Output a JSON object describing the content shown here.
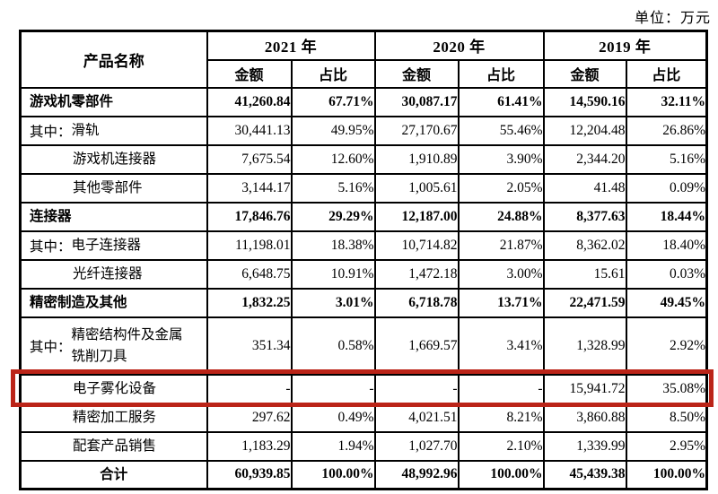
{
  "unit_label": "单位：万元",
  "table": {
    "col_product": "产品名称",
    "year_groups": [
      {
        "year": "2021 年"
      },
      {
        "year": "2020 年"
      },
      {
        "year": "2019 年"
      }
    ],
    "sub_headers": {
      "amount": "金额",
      "ratio": "占比"
    },
    "highlight_color": "#bb2418",
    "rows": [
      {
        "prefix": "",
        "name": "游戏机零部件",
        "style": "section",
        "tall": false,
        "highlight": false,
        "cells": [
          "41,260.84",
          "67.71%",
          "30,087.17",
          "61.41%",
          "14,590.16",
          "32.11%"
        ]
      },
      {
        "prefix": "其中：",
        "name": "滑轨",
        "style": "sub",
        "tall": false,
        "highlight": false,
        "cells": [
          "30,441.13",
          "49.95%",
          "27,170.67",
          "55.46%",
          "12,204.48",
          "26.86%"
        ]
      },
      {
        "prefix": "",
        "name": "游戏机连接器",
        "style": "sub-indent",
        "tall": false,
        "highlight": false,
        "cells": [
          "7,675.54",
          "12.60%",
          "1,910.89",
          "3.90%",
          "2,344.20",
          "5.16%"
        ]
      },
      {
        "prefix": "",
        "name": "其他零部件",
        "style": "sub-indent",
        "tall": false,
        "highlight": false,
        "cells": [
          "3,144.17",
          "5.16%",
          "1,005.61",
          "2.05%",
          "41.48",
          "0.09%"
        ]
      },
      {
        "prefix": "",
        "name": "连接器",
        "style": "section",
        "tall": false,
        "highlight": false,
        "cells": [
          "17,846.76",
          "29.29%",
          "12,187.00",
          "24.88%",
          "8,377.63",
          "18.44%"
        ]
      },
      {
        "prefix": "其中：",
        "name": "电子连接器",
        "style": "sub",
        "tall": false,
        "highlight": false,
        "cells": [
          "11,198.01",
          "18.38%",
          "10,714.82",
          "21.87%",
          "8,362.02",
          "18.40%"
        ]
      },
      {
        "prefix": "",
        "name": "光纤连接器",
        "style": "sub-indent",
        "tall": false,
        "highlight": false,
        "cells": [
          "6,648.75",
          "10.91%",
          "1,472.18",
          "3.00%",
          "15.61",
          "0.03%"
        ]
      },
      {
        "prefix": "",
        "name": "精密制造及其他",
        "style": "section",
        "tall": false,
        "highlight": false,
        "cells": [
          "1,832.25",
          "3.01%",
          "6,718.78",
          "13.71%",
          "22,471.59",
          "49.45%"
        ]
      },
      {
        "prefix": "其中：",
        "name": "精密结构件及金属铣削刀具",
        "style": "sub",
        "tall": true,
        "highlight": false,
        "cells": [
          "351.34",
          "0.58%",
          "1,669.57",
          "3.41%",
          "1,328.99",
          "2.92%"
        ]
      },
      {
        "prefix": "",
        "name": "电子雾化设备",
        "style": "sub-indent",
        "tall": false,
        "highlight": true,
        "cells": [
          "-",
          "-",
          "-",
          "-",
          "15,941.72",
          "35.08%"
        ]
      },
      {
        "prefix": "",
        "name": "精密加工服务",
        "style": "sub-indent",
        "tall": false,
        "highlight": false,
        "cells": [
          "297.62",
          "0.49%",
          "4,021.51",
          "8.21%",
          "3,860.88",
          "8.50%"
        ]
      },
      {
        "prefix": "",
        "name": "配套产品销售",
        "style": "sub-indent",
        "tall": false,
        "highlight": false,
        "cells": [
          "1,183.29",
          "1.94%",
          "1,027.70",
          "2.10%",
          "1,339.99",
          "2.95%"
        ]
      },
      {
        "prefix": "",
        "name": "合计",
        "style": "total",
        "tall": false,
        "highlight": false,
        "cells": [
          "60,939.85",
          "100.00%",
          "48,992.96",
          "100.00%",
          "45,439.38",
          "100.00%"
        ]
      }
    ]
  }
}
